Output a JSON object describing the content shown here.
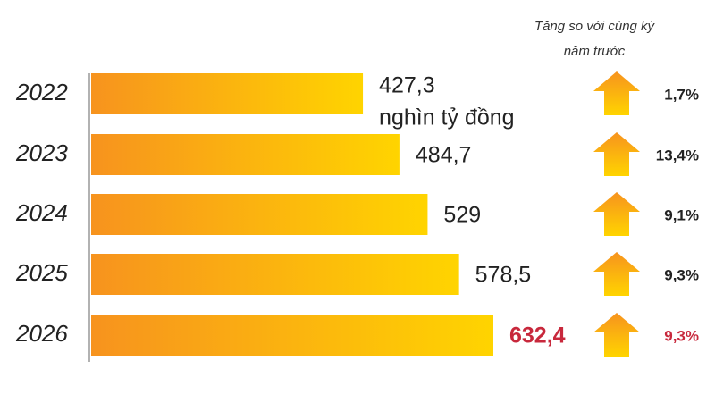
{
  "chart_data": {
    "type": "bar",
    "categories": [
      "2022",
      "2023",
      "2024",
      "2025",
      "2026"
    ],
    "values": [
      427.3,
      484.7,
      529,
      578.5,
      632.4
    ],
    "value_labels": [
      "427,3",
      "484,7",
      "529",
      "578,5",
      "632,4"
    ],
    "unit_label": "nghìn tỷ đồng",
    "colors": [
      "#f7931e",
      "#ffd400"
    ],
    "highlight": {
      "index": 4,
      "color": "#c8283c"
    },
    "growth_header": [
      "Tăng so với cùng kỳ",
      "năm trước"
    ],
    "growth": {
      "values": [
        1.7,
        13.4,
        9.1,
        9.3,
        9.3
      ],
      "value_labels": [
        "1,7%",
        "13,4%",
        "9,1%",
        "9,3%",
        "9,3%"
      ]
    }
  }
}
